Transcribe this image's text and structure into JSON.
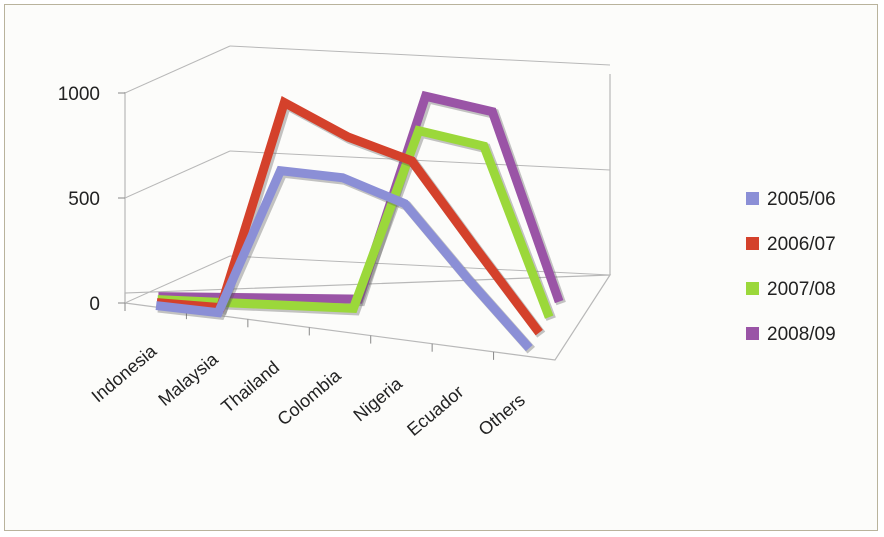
{
  "chart_data": {
    "type": "line",
    "style": "3d",
    "categories": [
      "Indonesia",
      "Malaysia",
      "Thailand",
      "Colombia",
      "Nigeria",
      "Ecuador",
      "Others"
    ],
    "series": [
      {
        "name": "2005/06",
        "color": "#8b8fd6",
        "values": [
          0,
          0,
          710,
          710,
          620,
          300,
          0
        ]
      },
      {
        "name": "2006/07",
        "color": "#d4412b",
        "values": [
          0,
          0,
          1000,
          860,
          770,
          380,
          0
        ]
      },
      {
        "name": "2007/08",
        "color": "#9bd83a",
        "values": [
          0,
          0,
          0,
          0,
          860,
          800,
          0
        ]
      },
      {
        "name": "2008/09",
        "color": "#9a54a6",
        "values": [
          0,
          0,
          0,
          0,
          970,
          900,
          0
        ]
      }
    ],
    "y_ticks": [
      "0",
      "500",
      "1000"
    ],
    "ylim": [
      0,
      1000
    ],
    "grid": true,
    "legend_position": "right"
  }
}
